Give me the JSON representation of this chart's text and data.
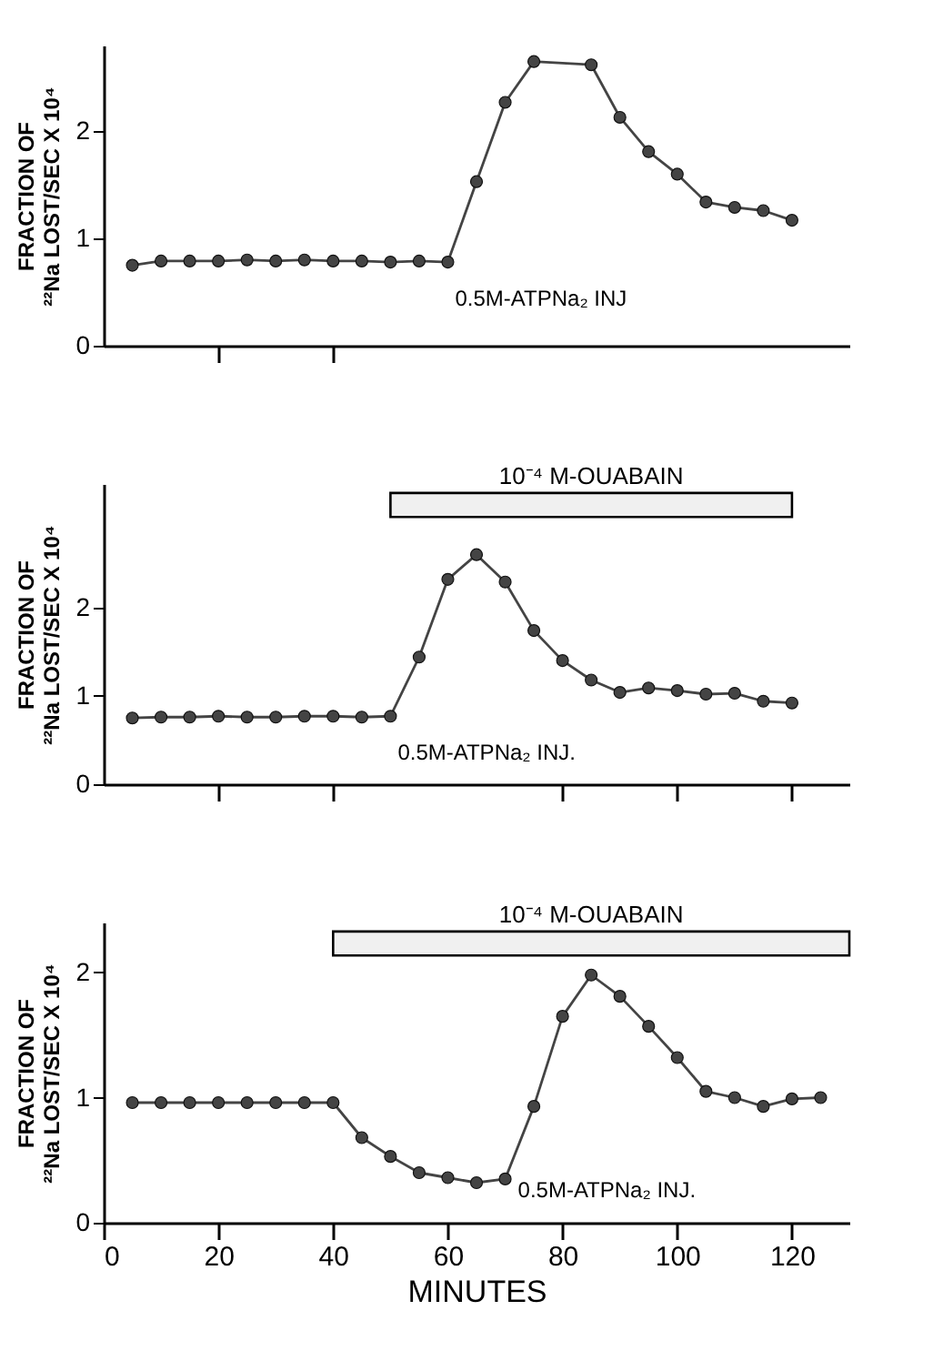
{
  "chart_data": [
    {
      "type": "line",
      "ylabel": "FRACTION OF\n²²Na LOST/SEC X 10⁴",
      "x": [
        5,
        10,
        15,
        20,
        25,
        30,
        35,
        40,
        45,
        50,
        55,
        60,
        65,
        70,
        75,
        85,
        90,
        95,
        100,
        105,
        110,
        115,
        120
      ],
      "series": [
        {
          "color": "#444444",
          "values": [
            0.75,
            0.79,
            0.79,
            0.79,
            0.8,
            0.79,
            0.8,
            0.79,
            0.79,
            0.78,
            0.79,
            0.78,
            1.53,
            2.27,
            2.65,
            2.62,
            2.13,
            1.81,
            1.6,
            1.34,
            1.29,
            1.26,
            1.17
          ]
        }
      ],
      "xlim": [
        0,
        130
      ],
      "ylim": [
        0,
        2.8
      ],
      "xticks": [
        20,
        40
      ],
      "yticks": [
        0,
        1,
        2
      ],
      "tick_labels": "y",
      "marker": "circle",
      "line_style": "solid",
      "annotations": [
        {
          "text": "0.5M-ATPNa₂ INJ",
          "x": 60,
          "y": 0.78
        }
      ]
    },
    {
      "type": "line",
      "ylabel": "FRACTION OF\n²²Na LOST/SEC X 10⁴",
      "x": [
        5,
        10,
        15,
        20,
        25,
        30,
        35,
        40,
        45,
        50,
        55,
        60,
        65,
        70,
        75,
        80,
        85,
        90,
        95,
        100,
        105,
        110,
        115,
        120
      ],
      "series": [
        {
          "color": "#444444",
          "values": [
            0.75,
            0.76,
            0.76,
            0.77,
            0.76,
            0.76,
            0.77,
            0.77,
            0.76,
            0.77,
            1.44,
            2.32,
            2.6,
            2.29,
            1.74,
            1.4,
            1.18,
            1.04,
            1.09,
            1.06,
            1.02,
            1.03,
            0.94,
            0.92
          ]
        }
      ],
      "xlim": [
        0,
        130
      ],
      "ylim": [
        0,
        3.4
      ],
      "xticks": [
        20,
        40,
        80,
        100,
        120
      ],
      "yticks": [
        0,
        1,
        2
      ],
      "tick_labels": "y",
      "marker": "circle",
      "line_style": "solid",
      "bands": [
        {
          "axis": "x",
          "from": 50,
          "to": 120,
          "label": "10⁻⁴ M-OUABAIN"
        }
      ],
      "annotations": [
        {
          "text": "0.5M-ATPNa₂ INJ.",
          "x": 50,
          "y": 0.77
        }
      ]
    },
    {
      "type": "line",
      "ylabel": "FRACTION OF\n²²Na LOST/SEC X 10⁴",
      "xlabel": "MINUTES",
      "x": [
        5,
        10,
        15,
        20,
        25,
        30,
        35,
        40,
        45,
        50,
        55,
        60,
        65,
        70,
        75,
        80,
        85,
        90,
        95,
        100,
        105,
        110,
        115,
        120,
        125
      ],
      "series": [
        {
          "color": "#444444",
          "values": [
            0.96,
            0.96,
            0.96,
            0.96,
            0.96,
            0.96,
            0.96,
            0.96,
            0.68,
            0.53,
            0.4,
            0.36,
            0.32,
            0.35,
            0.93,
            1.65,
            1.98,
            1.81,
            1.57,
            1.32,
            1.05,
            1.0,
            0.93,
            0.99,
            1.0
          ]
        }
      ],
      "xlim": [
        0,
        130
      ],
      "ylim": [
        0,
        2.4
      ],
      "xticks": [
        0,
        20,
        40,
        60,
        80,
        100,
        120
      ],
      "yticks": [
        0,
        1,
        2
      ],
      "marker": "circle",
      "line_style": "solid",
      "bands": [
        {
          "axis": "x",
          "from": 40,
          "to": 130,
          "label": "10⁻⁴ M-OUABAIN"
        }
      ],
      "annotations": [
        {
          "text": "0.5M-ATPNa₂ INJ.",
          "x": 70,
          "y": 0.35
        }
      ]
    }
  ]
}
